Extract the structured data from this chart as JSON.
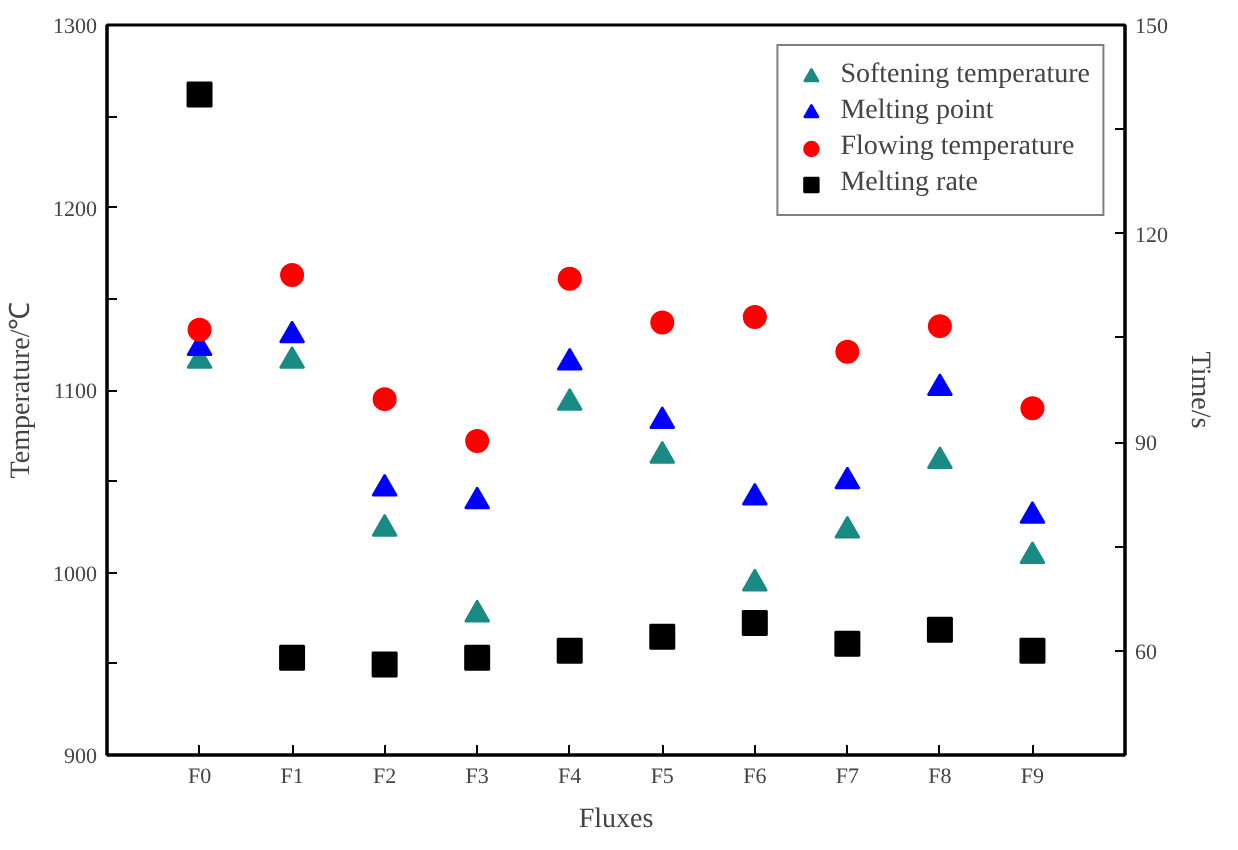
{
  "chart_data": {
    "type": "scatter",
    "xlabel": "Fluxes",
    "ylabel": "Temperature/℃",
    "y2label": "Time/s",
    "categories": [
      "F0",
      "F1",
      "F2",
      "F3",
      "F4",
      "F5",
      "F6",
      "F7",
      "F8",
      "F9"
    ],
    "series": [
      {
        "name": "Softening temperature",
        "color": "#1a8a84",
        "marker": "triangle",
        "values": [
          1116,
          1116,
          1024,
          977,
          1093,
          1064,
          994,
          1023,
          1061,
          1009
        ]
      },
      {
        "name": "Melting point",
        "color": "#0000ff",
        "marker": "triangle",
        "values": [
          1123,
          1130,
          1046,
          1039,
          1115,
          1083,
          1041,
          1050,
          1101,
          1031
        ]
      },
      {
        "name": "Flowing temperature",
        "color": "#ff0000",
        "marker": "circle",
        "values": [
          1133,
          1163,
          1095,
          1072,
          1161,
          1137,
          1140,
          1121,
          1135,
          1090
        ]
      },
      {
        "name": "Melting rate",
        "color": "#000000",
        "marker": "square",
        "axis": "y2",
        "values": [
          140,
          59,
          58,
          59,
          60,
          62,
          64,
          61,
          63,
          60
        ]
      }
    ],
    "ylim": [
      900,
      1300
    ],
    "yticks": [
      900,
      {
        "value": 950,
        "label": null
      },
      1000,
      {
        "value": 1050,
        "label": null
      },
      1100,
      {
        "value": 1150,
        "label": null
      },
      1200,
      {
        "value": 1250,
        "label": null
      },
      1300
    ],
    "y2lim": [
      45,
      150
    ],
    "y2ticks": [
      60,
      {
        "value": 75,
        "label": null
      },
      90,
      {
        "value": 105,
        "label": null
      },
      120,
      {
        "value": 135,
        "label": null
      },
      150
    ],
    "legend": "top right",
    "grid": false
  }
}
